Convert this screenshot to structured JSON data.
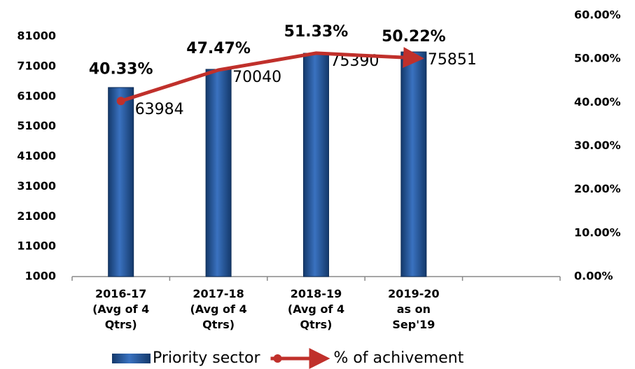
{
  "chart_data": {
    "type": "bar-line",
    "categories": [
      "2016-17\n(Avg of 4\nQtrs)",
      "2017-18\n(Avg of 4\nQtrs)",
      "2018-19\n(Avg of 4\nQtrs)",
      "2019-20\nas on\nSep'19",
      null
    ],
    "series": [
      {
        "name": "Priority sector",
        "type": "bar",
        "color": "#1f4e8c",
        "values": [
          63984,
          70040,
          75390,
          75851,
          null
        ]
      },
      {
        "name": "% of achivement",
        "type": "line",
        "axis": "y2",
        "color": "#c0302b",
        "values": [
          40.33,
          47.47,
          51.33,
          50.22,
          null
        ],
        "value_labels": [
          "40.33%",
          "47.47%",
          "51.33%",
          "50.22%",
          null
        ]
      }
    ],
    "ylim": [
      1000,
      88000
    ],
    "yticks": [
      1000,
      11000,
      21000,
      31000,
      41000,
      51000,
      61000,
      71000,
      81000
    ],
    "y2lim": [
      0,
      60
    ],
    "y2ticks": [
      {
        "value": 0,
        "label": "0.00%"
      },
      {
        "value": 10,
        "label": "10.00%"
      },
      {
        "value": 20,
        "label": "20.00%"
      },
      {
        "value": 30,
        "label": "30.00%"
      },
      {
        "value": 40,
        "label": "40.00%"
      },
      {
        "value": 50,
        "label": "50.00%"
      },
      {
        "value": 60,
        "label": "60.00%"
      }
    ],
    "legend": "bottom"
  }
}
